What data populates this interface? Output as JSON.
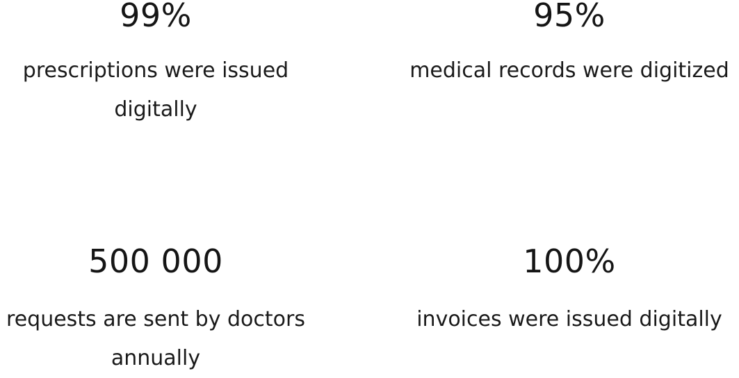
{
  "stats": [
    {
      "value": "99%",
      "label": "prescriptions were issued digitally"
    },
    {
      "value": "95%",
      "label": "medical records were digitized"
    },
    {
      "value": "500 000",
      "label": "requests are sent by doctors annually"
    },
    {
      "value": "100%",
      "label": "invoices were issued digitally"
    }
  ]
}
